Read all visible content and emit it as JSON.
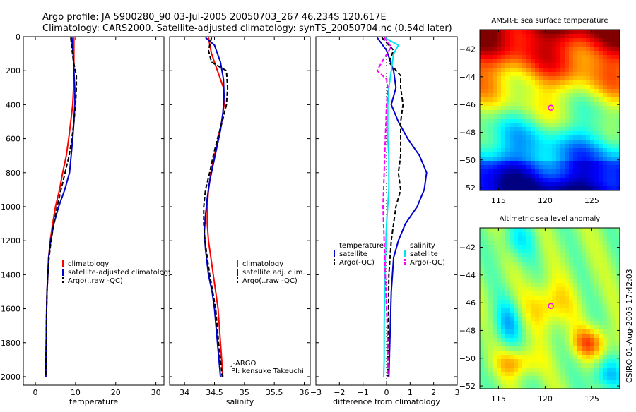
{
  "header": {
    "title_line1": "Argo profile: JA 5900280_90 03-Jul-2005 20050703_267 46.234S 120.617E",
    "title_line2": "Climatology: CARS2000. Satellite-adjusted climatology: synTS_20050704.nc (0.54d later)"
  },
  "footer": {
    "credit": "CSIRO 01-Aug-2005 17:42:03"
  },
  "colors": {
    "climatology": "#ff0000",
    "satellite": "#0000cc",
    "argo": "#000000",
    "salinity": "#ff00ff",
    "sal_satellite": "#00e5ee",
    "marker": "#ff00ff"
  },
  "chart_data": [
    {
      "type": "line",
      "xlabel": "temperature",
      "ylabel": "",
      "xlim": [
        -3,
        32
      ],
      "ylim": [
        2050,
        0
      ],
      "xticks": [
        0,
        10,
        20,
        30
      ],
      "yticks": [
        0,
        200,
        400,
        600,
        800,
        1000,
        1200,
        1400,
        1600,
        1800,
        2000
      ],
      "legend": [
        "climatology",
        "satellite-adjusted climatology",
        "Argo(..raw -QC)"
      ],
      "legend_position": "middle-right",
      "series": [
        {
          "name": "climatology",
          "color": "#ff0000",
          "dash": "none",
          "points": [
            [
              9.6,
              5
            ],
            [
              9.6,
              50
            ],
            [
              9.6,
              100
            ],
            [
              9.6,
              200
            ],
            [
              9.5,
              300
            ],
            [
              9.3,
              400
            ],
            [
              8.8,
              500
            ],
            [
              8.3,
              600
            ],
            [
              7.7,
              700
            ],
            [
              6.8,
              800
            ],
            [
              6.0,
              900
            ],
            [
              5.0,
              1000
            ],
            [
              4.3,
              1100
            ],
            [
              3.7,
              1200
            ],
            [
              3.3,
              1300
            ],
            [
              3.1,
              1400
            ],
            [
              2.9,
              1500
            ],
            [
              2.8,
              1600
            ],
            [
              2.7,
              1800
            ],
            [
              2.6,
              2000
            ]
          ]
        },
        {
          "name": "satellite-adjusted climatology",
          "color": "#0000cc",
          "dash": "none",
          "points": [
            [
              9.1,
              5
            ],
            [
              9.2,
              50
            ],
            [
              9.4,
              100
            ],
            [
              9.6,
              200
            ],
            [
              9.8,
              300
            ],
            [
              9.8,
              400
            ],
            [
              9.6,
              500
            ],
            [
              9.3,
              600
            ],
            [
              8.9,
              700
            ],
            [
              8.5,
              800
            ],
            [
              7.3,
              900
            ],
            [
              5.8,
              1000
            ],
            [
              4.6,
              1100
            ],
            [
              3.8,
              1200
            ],
            [
              3.3,
              1300
            ],
            [
              3.1,
              1400
            ],
            [
              2.9,
              1500
            ],
            [
              2.8,
              1600
            ],
            [
              2.7,
              1800
            ],
            [
              2.6,
              2000
            ]
          ]
        },
        {
          "name": "Argo(..raw -QC)",
          "color": "#000000",
          "dash": "6,3",
          "points": [
            [
              8.8,
              5
            ],
            [
              9.0,
              50
            ],
            [
              9.5,
              150
            ],
            [
              10.2,
              230
            ],
            [
              10.2,
              300
            ],
            [
              10.0,
              400
            ],
            [
              9.6,
              500
            ],
            [
              9.1,
              600
            ],
            [
              8.4,
              700
            ],
            [
              7.4,
              800
            ],
            [
              6.4,
              900
            ],
            [
              5.4,
              1000
            ],
            [
              4.6,
              1100
            ],
            [
              3.9,
              1200
            ],
            [
              3.4,
              1300
            ],
            [
              3.1,
              1400
            ],
            [
              2.9,
              1500
            ],
            [
              2.8,
              1600
            ],
            [
              2.7,
              1800
            ],
            [
              2.6,
              2000
            ]
          ]
        }
      ]
    },
    {
      "type": "line",
      "xlabel": "salinity",
      "ylabel": "",
      "xlim": [
        33.75,
        36.1
      ],
      "ylim": [
        2050,
        0
      ],
      "xticks": [
        34,
        34.5,
        35,
        35.5,
        36
      ],
      "yticks": [
        0,
        200,
        400,
        600,
        800,
        1000,
        1200,
        1400,
        1600,
        1800,
        2000
      ],
      "legend": [
        "climatology",
        "satellite adj. clim.",
        "Argo(..raw -QC)"
      ],
      "legend_position": "middle-right",
      "annotations": [
        "J-ARGO",
        "PI: kensuke Takeuchi"
      ],
      "series": [
        {
          "name": "climatology",
          "color": "#ff0000",
          "dash": "none",
          "points": [
            [
              34.4,
              5
            ],
            [
              34.45,
              100
            ],
            [
              34.55,
              200
            ],
            [
              34.65,
              300
            ],
            [
              34.66,
              400
            ],
            [
              34.62,
              500
            ],
            [
              34.56,
              600
            ],
            [
              34.5,
              700
            ],
            [
              34.44,
              800
            ],
            [
              34.4,
              900
            ],
            [
              34.38,
              1000
            ],
            [
              34.38,
              1100
            ],
            [
              34.4,
              1200
            ],
            [
              34.44,
              1300
            ],
            [
              34.48,
              1400
            ],
            [
              34.52,
              1500
            ],
            [
              34.56,
              1600
            ],
            [
              34.6,
              1800
            ],
            [
              34.64,
              2000
            ]
          ]
        },
        {
          "name": "satellite adj. clim.",
          "color": "#0000cc",
          "dash": "none",
          "points": [
            [
              34.35,
              5
            ],
            [
              34.5,
              50
            ],
            [
              34.6,
              150
            ],
            [
              34.65,
              250
            ],
            [
              34.66,
              350
            ],
            [
              34.64,
              450
            ],
            [
              34.6,
              550
            ],
            [
              34.54,
              650
            ],
            [
              34.48,
              750
            ],
            [
              34.42,
              850
            ],
            [
              34.38,
              950
            ],
            [
              34.35,
              1050
            ],
            [
              34.33,
              1150
            ],
            [
              34.35,
              1250
            ],
            [
              34.4,
              1400
            ],
            [
              34.46,
              1500
            ],
            [
              34.5,
              1600
            ],
            [
              34.55,
              1800
            ],
            [
              34.6,
              2000
            ]
          ]
        },
        {
          "name": "Argo(..raw -QC)",
          "color": "#000000",
          "dash": "6,3",
          "points": [
            [
              34.45,
              5
            ],
            [
              34.4,
              80
            ],
            [
              34.45,
              150
            ],
            [
              34.7,
              200
            ],
            [
              34.72,
              300
            ],
            [
              34.7,
              400
            ],
            [
              34.63,
              500
            ],
            [
              34.55,
              600
            ],
            [
              34.48,
              700
            ],
            [
              34.42,
              800
            ],
            [
              34.35,
              900
            ],
            [
              34.32,
              1000
            ],
            [
              34.32,
              1100
            ],
            [
              34.34,
              1200
            ],
            [
              34.38,
              1300
            ],
            [
              34.42,
              1400
            ],
            [
              34.47,
              1500
            ],
            [
              34.52,
              1600
            ],
            [
              34.57,
              1800
            ],
            [
              34.63,
              2000
            ]
          ]
        }
      ]
    },
    {
      "type": "line",
      "xlabel": "difference from climatology",
      "ylabel": "",
      "xlim": [
        -3,
        3
      ],
      "ylim": [
        2050,
        0
      ],
      "xticks": [
        -3,
        -2,
        -1,
        0,
        1,
        2,
        3
      ],
      "yticks": [
        0,
        200,
        400,
        600,
        800,
        1000,
        1200,
        1400,
        1600,
        1800,
        2000
      ],
      "legend": [
        "temperature",
        "satellite",
        "Argo(-QC)",
        "salinity",
        "satellite",
        "Argo(-QC)"
      ],
      "legend_position": "middle",
      "series": [
        {
          "name": "temperature satellite",
          "color": "#0000cc",
          "dash": "none",
          "points": [
            [
              -0.4,
              5
            ],
            [
              0,
              80
            ],
            [
              0.3,
              200
            ],
            [
              0.4,
              300
            ],
            [
              0.2,
              400
            ],
            [
              0.5,
              500
            ],
            [
              0.9,
              600
            ],
            [
              1.4,
              700
            ],
            [
              1.7,
              800
            ],
            [
              1.6,
              900
            ],
            [
              1.3,
              1000
            ],
            [
              0.8,
              1100
            ],
            [
              0.5,
              1200
            ],
            [
              0.3,
              1300
            ],
            [
              0.2,
              1500
            ],
            [
              0.1,
              2000
            ]
          ]
        },
        {
          "name": "temperature Argo(-QC)",
          "color": "#000000",
          "dash": "6,3",
          "points": [
            [
              -0.2,
              5
            ],
            [
              0.3,
              80
            ],
            [
              0.1,
              150
            ],
            [
              0.6,
              230
            ],
            [
              0.6,
              300
            ],
            [
              0.7,
              400
            ],
            [
              0.6,
              500
            ],
            [
              0.6,
              600
            ],
            [
              0.6,
              700
            ],
            [
              0.5,
              800
            ],
            [
              0.6,
              900
            ],
            [
              0.4,
              1000
            ],
            [
              0.3,
              1100
            ],
            [
              0.2,
              1200
            ],
            [
              0.1,
              1400
            ],
            [
              0.05,
              2000
            ]
          ]
        },
        {
          "name": "salinity satellite",
          "color": "#00e5ee",
          "dash": "none",
          "points": [
            [
              -0.1,
              5
            ],
            [
              0.5,
              50
            ],
            [
              0.3,
              100
            ],
            [
              0.2,
              200
            ],
            [
              0.1,
              300
            ],
            [
              0.05,
              400
            ],
            [
              0.05,
              600
            ],
            [
              0.1,
              700
            ],
            [
              0.1,
              900
            ],
            [
              0,
              1100
            ],
            [
              -0.05,
              1300
            ],
            [
              -0.08,
              1500
            ],
            [
              -0.1,
              1700
            ],
            [
              -0.1,
              1900
            ],
            [
              -0.12,
              2000
            ]
          ]
        },
        {
          "name": "salinity Argo(-QC)",
          "color": "#ff00ff",
          "dash": "6,3",
          "points": [
            [
              -0.1,
              5
            ],
            [
              0.2,
              60
            ],
            [
              -0.2,
              150
            ],
            [
              -0.4,
              200
            ],
            [
              0,
              250
            ],
            [
              0.05,
              300
            ],
            [
              0,
              400
            ],
            [
              -0.05,
              600
            ],
            [
              -0.1,
              800
            ],
            [
              -0.15,
              1000
            ],
            [
              -0.1,
              1200
            ],
            [
              -0.05,
              1400
            ],
            [
              0,
              1600
            ],
            [
              0.05,
              1800
            ],
            [
              0.05,
              2000
            ]
          ]
        }
      ]
    },
    {
      "type": "heatmap",
      "title": "AMSR-E sea surface temperature",
      "xlim": [
        113,
        128
      ],
      "ylim": [
        -52.2,
        -40.6
      ],
      "xticks": [
        115,
        120,
        125
      ],
      "yticks": [
        -42,
        -44,
        -46,
        -48,
        -50,
        -52
      ],
      "marker": {
        "lon": 120.617,
        "lat": -46.234
      }
    },
    {
      "type": "heatmap",
      "title": "Altimetric sea level anomaly",
      "xlim": [
        113,
        128
      ],
      "ylim": [
        -52.2,
        -40.6
      ],
      "xticks": [
        115,
        120,
        125
      ],
      "yticks": [
        -42,
        -44,
        -46,
        -48,
        -50,
        -52
      ],
      "marker": {
        "lon": 120.617,
        "lat": -46.234
      }
    }
  ]
}
